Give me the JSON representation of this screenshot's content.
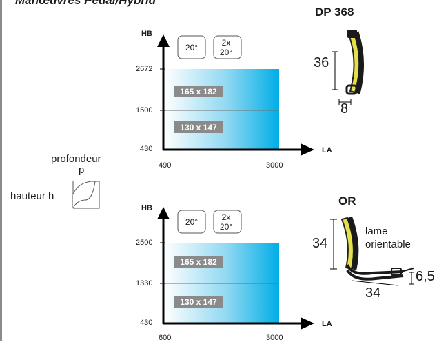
{
  "header": {
    "title": "Manœuvres Pedal/Hybrid"
  },
  "legend": {
    "depth_label": "profondeur",
    "depth_symbol": "p",
    "height_label": "hauteur h"
  },
  "charts": [
    {
      "y_axis_label": "HB",
      "x_axis_label": "LA",
      "y_ticks": [
        "2672",
        "1500",
        "430"
      ],
      "x_ticks": [
        "490",
        "3000"
      ],
      "angle_badges": [
        {
          "line1": "20°"
        },
        {
          "line1": "2x",
          "line2": "20°"
        }
      ],
      "zones": [
        {
          "label": "165 x 182"
        },
        {
          "label": "130 x 147"
        }
      ]
    },
    {
      "y_axis_label": "HB",
      "x_axis_label": "LA",
      "y_ticks": [
        "2500",
        "1330",
        "430"
      ],
      "x_ticks": [
        "600",
        "3000"
      ],
      "angle_badges": [
        {
          "line1": "20°"
        },
        {
          "line1": "2x",
          "line2": "20°"
        }
      ],
      "zones": [
        {
          "label": "165 x 182"
        },
        {
          "label": "130 x 147"
        }
      ]
    }
  ],
  "profiles": [
    {
      "title": "DP 368",
      "height": "36",
      "width": "8"
    },
    {
      "title": "OR",
      "height": "34",
      "width": "34",
      "thickness": "6,5",
      "note_line1": "lame",
      "note_line2": "orientable"
    }
  ],
  "colors": {
    "gradient_start": "#ffffff",
    "gradient_end": "#00aee6",
    "label_bg": "#8a8a8a",
    "slat_yellow": "#e6e04a"
  }
}
